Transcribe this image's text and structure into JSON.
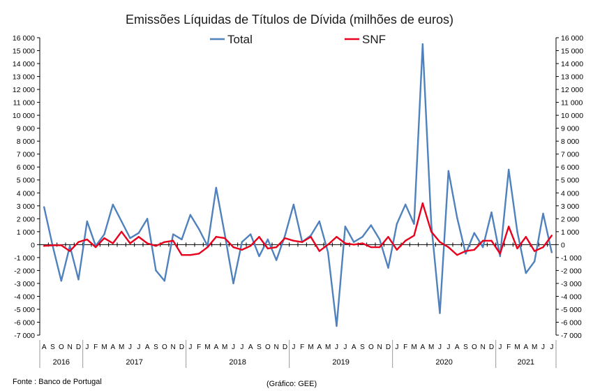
{
  "chart_data": {
    "type": "line",
    "title": "Emissões Líquidas de Títulos de Dívida (milhões de euros)",
    "source_note": "Fonte : Banco de Portugal",
    "credit_note": "(Gráfico: GEE)",
    "legend_position": "top-center",
    "grid": false,
    "y_axis": {
      "min": -7000,
      "max": 16000,
      "ticks": [
        "-7 000",
        "-6 000",
        "-5 000",
        "-4 000",
        "-3 000",
        "-2 000",
        "-1 000",
        "0",
        "1 000",
        "2 000",
        "3 000",
        "4 000",
        "5 000",
        "6 000",
        "7 000",
        "8 000",
        "9 000",
        "10 000",
        "11 000",
        "12 000",
        "13 000",
        "14 000",
        "15 000",
        "16 000"
      ],
      "secondary_axis_mirrored": true
    },
    "x": [
      "A",
      "S",
      "O",
      "N",
      "D",
      "J",
      "F",
      "M",
      "A",
      "M",
      "J",
      "J",
      "A",
      "S",
      "O",
      "N",
      "D",
      "J",
      "F",
      "M",
      "A",
      "M",
      "J",
      "J",
      "A",
      "S",
      "O",
      "N",
      "D",
      "J",
      "F",
      "M",
      "A",
      "M",
      "J",
      "J",
      "A",
      "S",
      "O",
      "N",
      "D",
      "J",
      "F",
      "M",
      "A",
      "M",
      "J",
      "J",
      "A",
      "S",
      "O",
      "N",
      "D",
      "J",
      "F",
      "M",
      "A",
      "M",
      "J",
      "J"
    ],
    "years": [
      {
        "label": "2016",
        "start": 0,
        "count": 5
      },
      {
        "label": "2017",
        "start": 5,
        "count": 12
      },
      {
        "label": "2018",
        "start": 17,
        "count": 12
      },
      {
        "label": "2019",
        "start": 29,
        "count": 12
      },
      {
        "label": "2020",
        "start": 41,
        "count": 12
      },
      {
        "label": "2021",
        "start": 53,
        "count": 7
      }
    ],
    "series": [
      {
        "name": "Total",
        "color": "#4f81bd",
        "values": [
          2900,
          -100,
          -2800,
          -100,
          -2700,
          1800,
          -100,
          800,
          3100,
          1800,
          500,
          900,
          2000,
          -2000,
          -2800,
          800,
          400,
          2300,
          1200,
          -100,
          4400,
          800,
          -3000,
          200,
          800,
          -900,
          400,
          -1200,
          700,
          3100,
          200,
          700,
          1800,
          -600,
          -6300,
          1400,
          200,
          600,
          1500,
          400,
          -1800,
          1600,
          3100,
          1600,
          15500,
          1600,
          -5300,
          5700,
          2100,
          -700,
          900,
          -200,
          2500,
          -900,
          5800,
          1000,
          -2200,
          -1300,
          2400,
          -600
        ]
      },
      {
        "name": "SNF",
        "color": "#e8001c",
        "values": [
          -100,
          -50,
          -50,
          -500,
          200,
          400,
          -200,
          500,
          100,
          1000,
          100,
          600,
          100,
          -100,
          200,
          300,
          -800,
          -800,
          -700,
          -200,
          600,
          500,
          -200,
          -400,
          -100,
          600,
          -300,
          -200,
          500,
          300,
          200,
          600,
          -500,
          0,
          600,
          100,
          0,
          100,
          -200,
          -200,
          600,
          -400,
          300,
          700,
          3200,
          1000,
          200,
          -200,
          -800,
          -500,
          -400,
          300,
          300,
          -700,
          1400,
          -300,
          600,
          -500,
          -200,
          700
        ]
      }
    ]
  }
}
